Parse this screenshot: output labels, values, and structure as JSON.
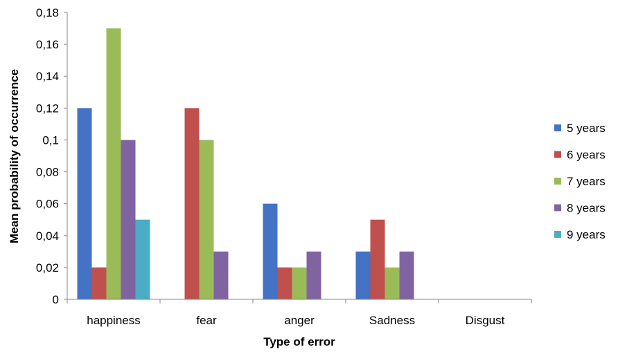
{
  "chart_data": {
    "type": "bar",
    "xlabel": "Type of error",
    "ylabel": "Mean probability of occurrence",
    "categories": [
      "happiness",
      "fear",
      "anger",
      "Sadness",
      "Disgust"
    ],
    "ylim": [
      0,
      0.18
    ],
    "yticks": [
      0,
      0.02,
      0.04,
      0.06,
      0.08,
      0.1,
      0.12,
      0.14,
      0.16,
      0.18
    ],
    "ytick_labels": [
      "0",
      "0,02",
      "0,04",
      "0,06",
      "0,08",
      "0,1",
      "0,12",
      "0,14",
      "0,16",
      "0,18"
    ],
    "grid": false,
    "legend_position": "right",
    "series": [
      {
        "name": "5 years",
        "color": "#4472C4",
        "values": [
          0.12,
          0,
          0.06,
          0.03,
          0
        ]
      },
      {
        "name": "6 years",
        "color": "#C0504D",
        "values": [
          0.02,
          0.12,
          0.02,
          0.05,
          0
        ]
      },
      {
        "name": "7 years",
        "color": "#9BBB59",
        "values": [
          0.17,
          0.1,
          0.02,
          0.02,
          0
        ]
      },
      {
        "name": "8 years",
        "color": "#8064A2",
        "values": [
          0.1,
          0.03,
          0.03,
          0.03,
          0
        ]
      },
      {
        "name": "9 years",
        "color": "#4BACC6",
        "values": [
          0.05,
          0,
          0,
          0,
          0
        ]
      }
    ]
  }
}
